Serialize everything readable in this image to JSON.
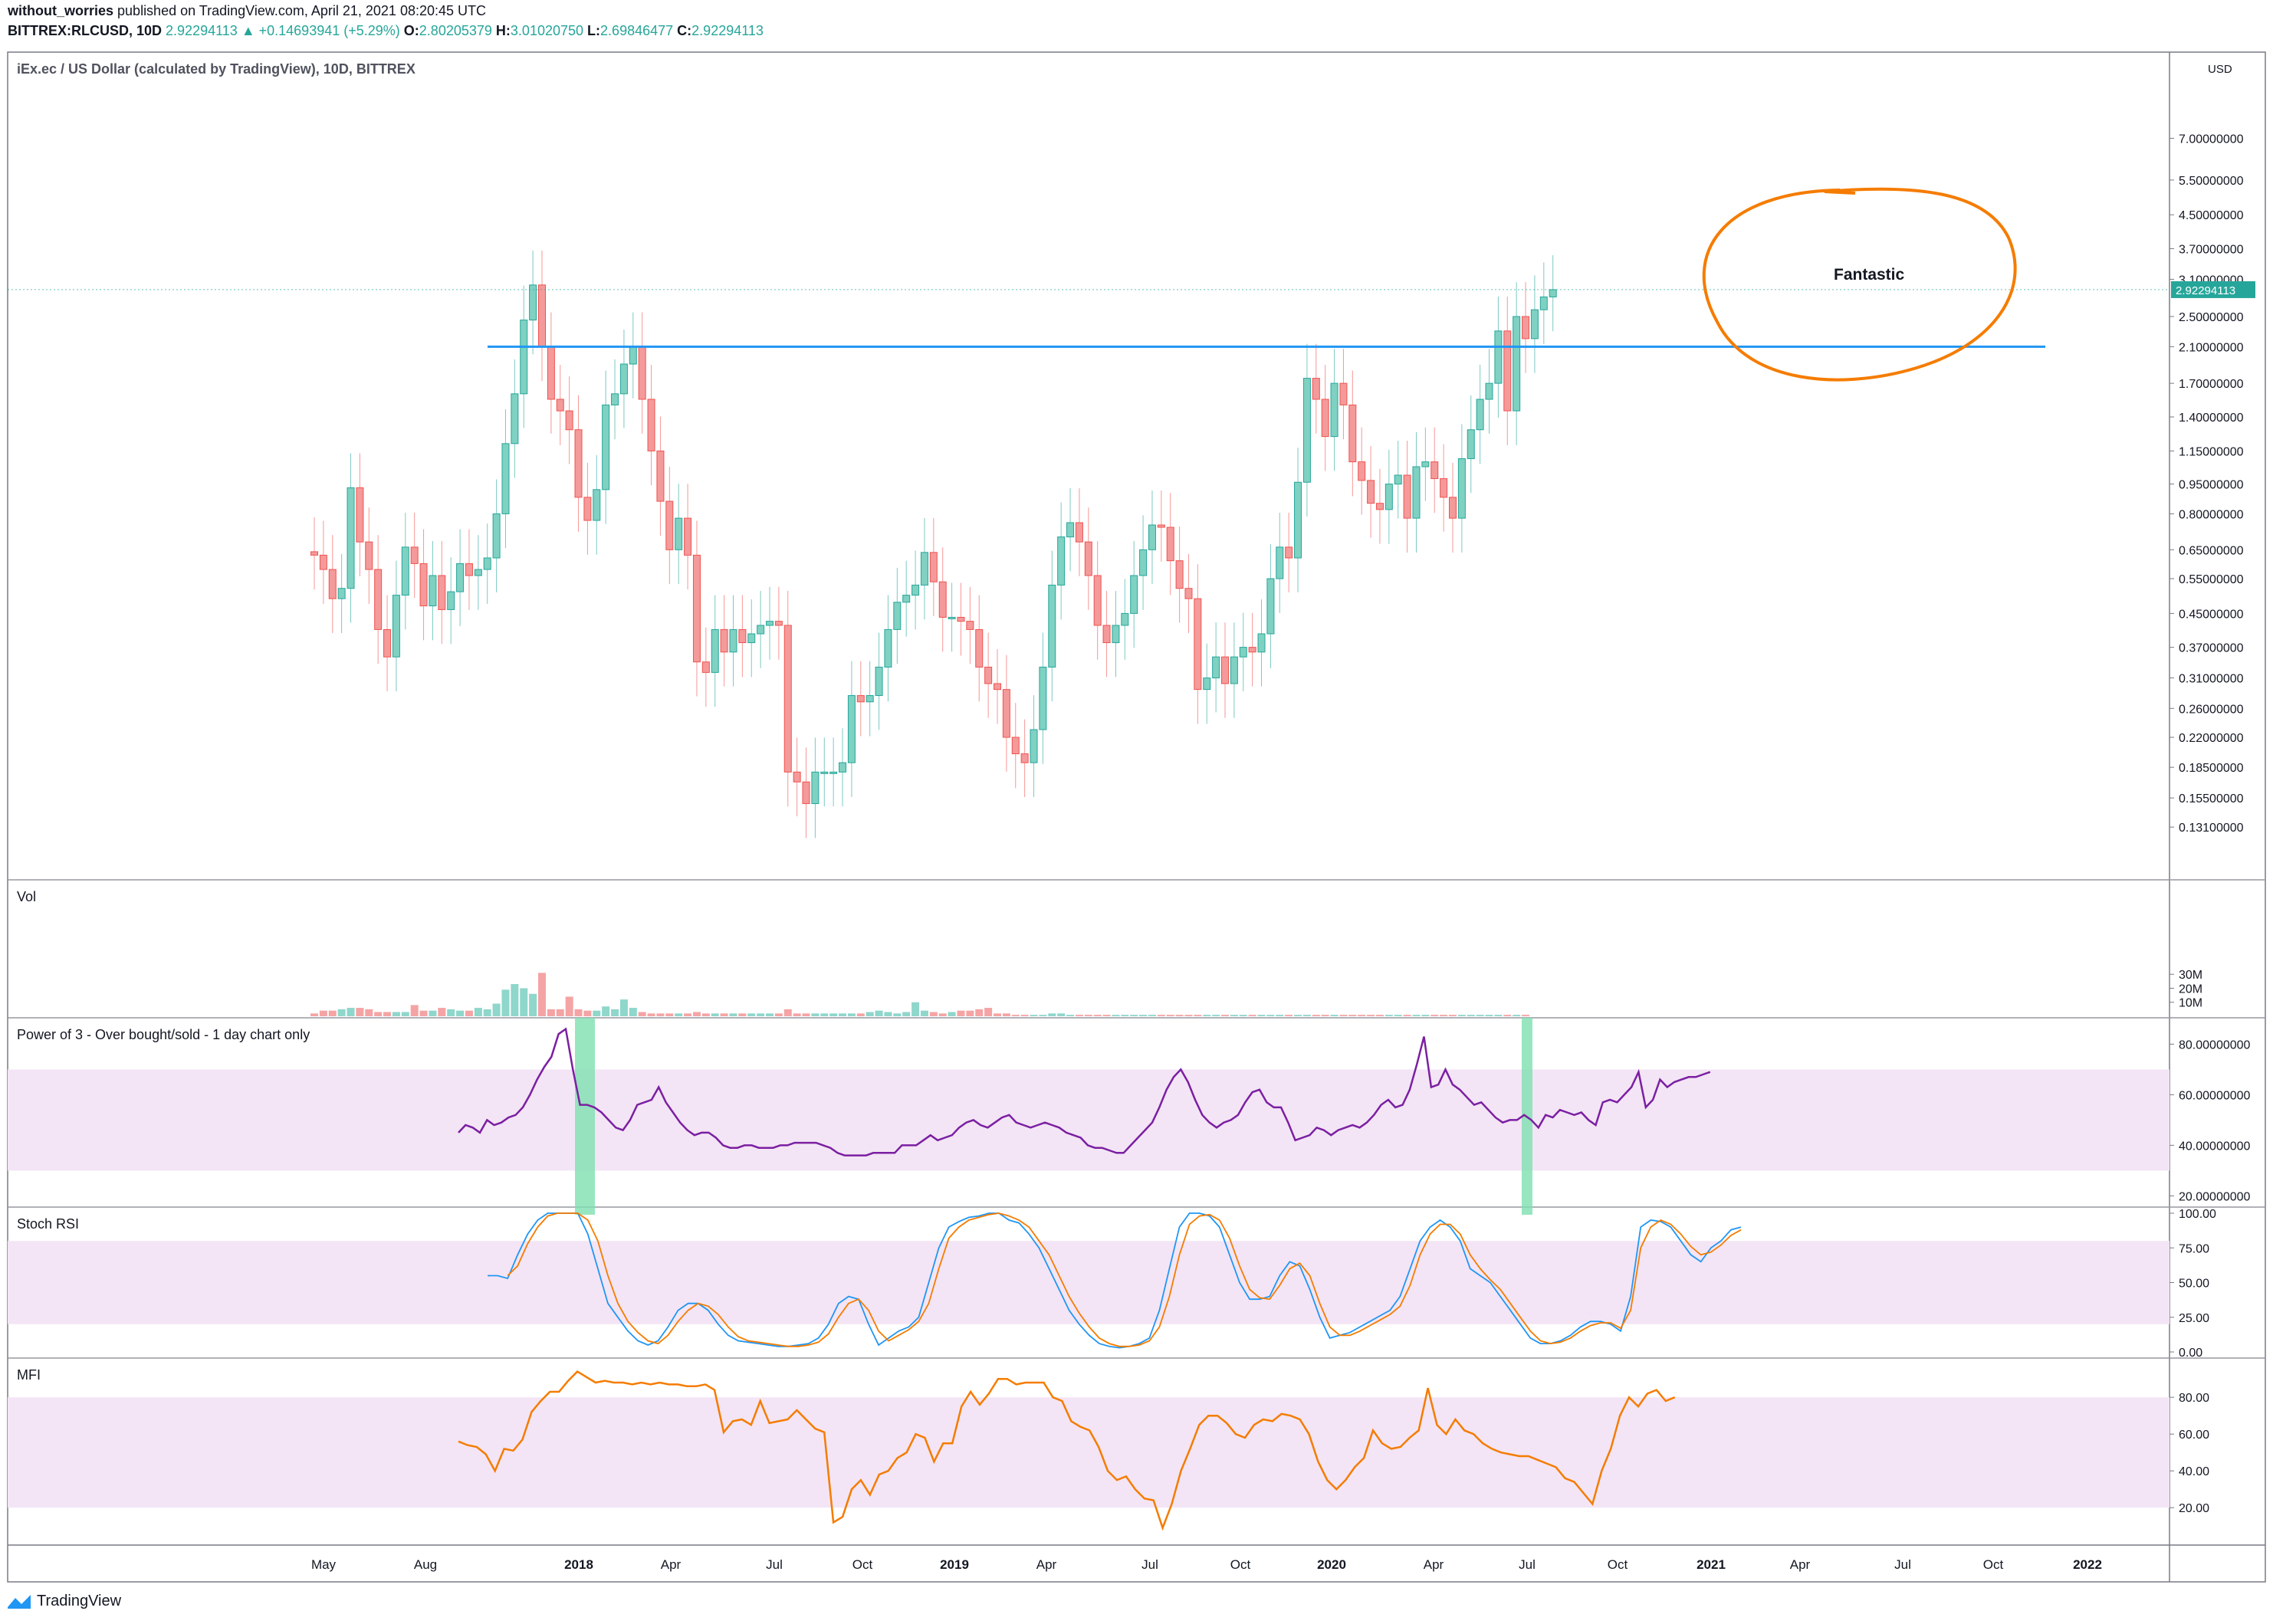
{
  "header": {
    "author": "without_worries",
    "published": "published on TradingView.com, April 21, 2021 08:20:45 UTC",
    "symbol": "BITTREX:RLCUSD, 10D",
    "last": "2.92294113",
    "change": "▲ +0.14693941 (+5.29%)",
    "open_label": "O:",
    "open": "2.80205379",
    "high_label": "H:",
    "high": "3.01020750",
    "low_label": "L:",
    "low": "2.69846477",
    "close_label": "C:",
    "close": "2.92294113"
  },
  "brand": "TradingView",
  "colors": {
    "up": "#26a69a",
    "down": "#ef5350",
    "level": "#2196f3",
    "rsi": "#7b1fa2",
    "band": "#f3e5f5",
    "highlight": "#7ee0b0",
    "circle": "#f57c00",
    "stochK": "#2196f3",
    "stochD": "#f57c00",
    "mfi": "#f57c00"
  },
  "chart_data": [
    {
      "type": "candlestick",
      "title": "iEx.ec / US Dollar (calculated by TradingView), 10D, BITTREX",
      "y_scale": "log",
      "y_unit": "USD",
      "y_ticks": [
        "7.00000000",
        "5.50000000",
        "4.50000000",
        "3.70000000",
        "3.10000000",
        "2.50000000",
        "2.10000000",
        "1.70000000",
        "1.40000000",
        "1.15000000",
        "0.95000000",
        "0.80000000",
        "0.65000000",
        "0.55000000",
        "0.45000000",
        "0.37000000",
        "0.31000000",
        "0.26000000",
        "0.22000000",
        "0.18500000",
        "0.15500000",
        "0.13100000"
      ],
      "last_price_label": "2.92294113",
      "x_ticks": [
        "May",
        "Aug",
        "2018",
        "Apr",
        "Jul",
        "Oct",
        "2019",
        "Apr",
        "Jul",
        "Oct",
        "2020",
        "Apr",
        "Jul",
        "Oct",
        "2021",
        "Apr",
        "Jul",
        "Oct",
        "2022"
      ],
      "horizontal_level": 2.1,
      "annotation": "Fantastic",
      "closes": [
        0.63,
        0.58,
        0.49,
        0.52,
        0.93,
        0.68,
        0.58,
        0.41,
        0.35,
        0.5,
        0.66,
        0.6,
        0.47,
        0.56,
        0.46,
        0.51,
        0.6,
        0.56,
        0.58,
        0.62,
        0.8,
        1.2,
        1.6,
        2.45,
        3.0,
        2.1,
        1.55,
        1.45,
        1.3,
        0.88,
        0.77,
        0.92,
        1.5,
        1.6,
        1.9,
        2.1,
        1.55,
        1.15,
        0.86,
        0.65,
        0.78,
        0.63,
        0.34,
        0.32,
        0.41,
        0.36,
        0.41,
        0.38,
        0.4,
        0.42,
        0.43,
        0.42,
        0.18,
        0.17,
        0.15,
        0.18,
        0.18,
        0.18,
        0.19,
        0.28,
        0.27,
        0.28,
        0.33,
        0.41,
        0.48,
        0.5,
        0.53,
        0.64,
        0.54,
        0.44,
        0.44,
        0.43,
        0.41,
        0.33,
        0.3,
        0.29,
        0.22,
        0.2,
        0.19,
        0.23,
        0.33,
        0.53,
        0.7,
        0.76,
        0.68,
        0.56,
        0.42,
        0.38,
        0.42,
        0.45,
        0.56,
        0.65,
        0.75,
        0.74,
        0.61,
        0.52,
        0.49,
        0.29,
        0.31,
        0.35,
        0.3,
        0.35,
        0.37,
        0.36,
        0.4,
        0.55,
        0.66,
        0.62,
        0.96,
        1.75,
        1.55,
        1.25,
        1.7,
        1.5,
        1.08,
        0.97,
        0.85,
        0.82,
        0.95,
        1.0,
        0.78,
        1.05,
        1.08,
        0.98,
        0.88,
        0.78,
        1.1,
        1.3,
        1.55,
        1.7,
        2.3,
        1.45,
        2.5,
        2.2,
        2.6,
        2.8,
        2.92
      ],
      "volume_axis_ticks": [
        "30M",
        "20M",
        "10M"
      ],
      "volumes_M": [
        2,
        4,
        4,
        5,
        6,
        6,
        5,
        3,
        3,
        3,
        3,
        8,
        4,
        4,
        6,
        5,
        4,
        4,
        6,
        5,
        9,
        19,
        23,
        20,
        16,
        31,
        5,
        5,
        14,
        5,
        4,
        4,
        7,
        5,
        12,
        6,
        3,
        2,
        2,
        2,
        2,
        2,
        3,
        2,
        2,
        2,
        2,
        2,
        2,
        2,
        2,
        2,
        5,
        2,
        2,
        2,
        2,
        2,
        2,
        2,
        2,
        3,
        4,
        3,
        2,
        3,
        10,
        4,
        3,
        2,
        3,
        4,
        4,
        5,
        6,
        2,
        2,
        1,
        1,
        1,
        1,
        2,
        2,
        1,
        1,
        1,
        1,
        1,
        1,
        1,
        1,
        1,
        1,
        1,
        1,
        1,
        1,
        1,
        1,
        1,
        1,
        1,
        1,
        1,
        1,
        1,
        1,
        1,
        1,
        1,
        1,
        1,
        1,
        1,
        1,
        1,
        1,
        1,
        1,
        1,
        1,
        1,
        1,
        1,
        1,
        1,
        1,
        1,
        1,
        1,
        1,
        1,
        1,
        1
      ]
    },
    {
      "type": "line",
      "title": "Power of 3 - Over bought/sold - 1 day chart only",
      "ylim": [
        18,
        88
      ],
      "y_ticks": [
        "80.00000000",
        "60.00000000",
        "40.00000000",
        "20.00000000"
      ],
      "band": [
        30,
        70
      ],
      "highlights": [
        "2018",
        "Jul 2020"
      ],
      "values": [
        45,
        48,
        47,
        45,
        50,
        48,
        49,
        51,
        52,
        55,
        60,
        66,
        71,
        75,
        84,
        86,
        70,
        56,
        56,
        55,
        53,
        50,
        47,
        46,
        50,
        56,
        57,
        58,
        63,
        57,
        53,
        49,
        46,
        44,
        45,
        45,
        43,
        40,
        39,
        39,
        40,
        40,
        39,
        39,
        39,
        40,
        40,
        41,
        41,
        41,
        41,
        40,
        39,
        37,
        36,
        36,
        36,
        36,
        37,
        37,
        37,
        37,
        40,
        40,
        40,
        42,
        44,
        42,
        43,
        44,
        47,
        49,
        50,
        48,
        47,
        49,
        51,
        52,
        49,
        48,
        47,
        48,
        49,
        48,
        47,
        45,
        44,
        43,
        40,
        39,
        39,
        38,
        37,
        37,
        40,
        43,
        46,
        49,
        55,
        62,
        67,
        70,
        65,
        58,
        52,
        49,
        47,
        49,
        50,
        52,
        57,
        61,
        62,
        57,
        55,
        55,
        49,
        42,
        43,
        44,
        47,
        46,
        44,
        46,
        47,
        48,
        47,
        49,
        52,
        56,
        58,
        55,
        56,
        62,
        72,
        83,
        63,
        64,
        70,
        64,
        62,
        59,
        56,
        57,
        54,
        51,
        49,
        50,
        50,
        52,
        50,
        47,
        52,
        51,
        54,
        53,
        52,
        53,
        50,
        48,
        57,
        58,
        57,
        60,
        63,
        69,
        55,
        58,
        66,
        63,
        65,
        66,
        67,
        67,
        68,
        69
      ]
    },
    {
      "type": "line",
      "title": "Stoch RSI",
      "ylim": [
        0,
        100
      ],
      "y_ticks": [
        "100.00",
        "75.00",
        "50.00",
        "25.00",
        "0.00"
      ],
      "band": [
        20,
        80
      ],
      "series": [
        {
          "name": "K",
          "values": [
            55,
            55,
            53,
            70,
            85,
            95,
            100,
            100,
            100,
            100,
            85,
            60,
            35,
            25,
            15,
            8,
            5,
            8,
            18,
            30,
            35,
            35,
            30,
            20,
            12,
            8,
            7,
            6,
            5,
            4,
            4,
            5,
            6,
            10,
            20,
            35,
            40,
            38,
            20,
            5,
            10,
            15,
            18,
            25,
            50,
            75,
            90,
            94,
            97,
            98,
            100,
            100,
            95,
            93,
            85,
            75,
            60,
            45,
            30,
            20,
            12,
            6,
            4,
            3,
            4,
            6,
            10,
            30,
            60,
            90,
            100,
            100,
            98,
            90,
            70,
            50,
            38,
            38,
            40,
            55,
            65,
            62,
            45,
            25,
            10,
            12,
            14,
            18,
            22,
            26,
            30,
            40,
            60,
            80,
            90,
            95,
            90,
            80,
            60,
            55,
            50,
            40,
            30,
            20,
            10,
            6,
            6,
            8,
            12,
            18,
            22,
            22,
            20,
            15,
            40,
            90,
            95,
            94,
            90,
            80,
            70,
            65,
            75,
            80,
            88,
            90
          ]
        },
        {
          "name": "D",
          "values": [
            null,
            null,
            55,
            62,
            78,
            90,
            98,
            100,
            100,
            100,
            95,
            80,
            55,
            35,
            22,
            14,
            8,
            6,
            12,
            22,
            30,
            35,
            33,
            27,
            18,
            11,
            8,
            7,
            6,
            5,
            4,
            4,
            5,
            7,
            13,
            25,
            35,
            38,
            30,
            15,
            8,
            12,
            16,
            22,
            35,
            60,
            82,
            90,
            95,
            97,
            99,
            100,
            98,
            95,
            90,
            80,
            70,
            55,
            40,
            28,
            18,
            10,
            6,
            4,
            4,
            5,
            8,
            18,
            40,
            70,
            92,
            98,
            99,
            95,
            82,
            62,
            45,
            39,
            38,
            48,
            60,
            64,
            55,
            35,
            18,
            12,
            12,
            15,
            19,
            23,
            27,
            33,
            48,
            70,
            85,
            92,
            92,
            85,
            70,
            60,
            52,
            45,
            35,
            25,
            15,
            8,
            6,
            7,
            10,
            15,
            19,
            21,
            21,
            17,
            30,
            75,
            90,
            95,
            92,
            85,
            76,
            70,
            72,
            77,
            84,
            88
          ]
        }
      ]
    },
    {
      "type": "line",
      "title": "MFI",
      "ylim": [
        3,
        98
      ],
      "y_ticks": [
        "80.00",
        "60.00",
        "40.00",
        "20.00"
      ],
      "band": [
        20,
        80
      ],
      "values": [
        56,
        54,
        53,
        49,
        40,
        52,
        51,
        57,
        72,
        78,
        83,
        83,
        89,
        94,
        91,
        88,
        89,
        88,
        88,
        87,
        88,
        87,
        88,
        87,
        87,
        86,
        86,
        87,
        84,
        61,
        67,
        68,
        65,
        78,
        66,
        67,
        68,
        73,
        68,
        63,
        61,
        12,
        15,
        30,
        35,
        27,
        38,
        40,
        47,
        50,
        60,
        58,
        45,
        55,
        55,
        75,
        83,
        76,
        82,
        90,
        90,
        87,
        88,
        88,
        88,
        80,
        78,
        67,
        64,
        62,
        53,
        40,
        35,
        37,
        30,
        25,
        24,
        9,
        22,
        40,
        52,
        65,
        70,
        70,
        66,
        60,
        58,
        65,
        68,
        67,
        71,
        70,
        68,
        60,
        45,
        35,
        30,
        35,
        42,
        47,
        62,
        55,
        52,
        53,
        58,
        62,
        85,
        65,
        60,
        68,
        62,
        60,
        55,
        52,
        50,
        49,
        48,
        48,
        46,
        44,
        42,
        36,
        34,
        28,
        22,
        40,
        52,
        70,
        80,
        75,
        82,
        84,
        78,
        80
      ]
    }
  ]
}
